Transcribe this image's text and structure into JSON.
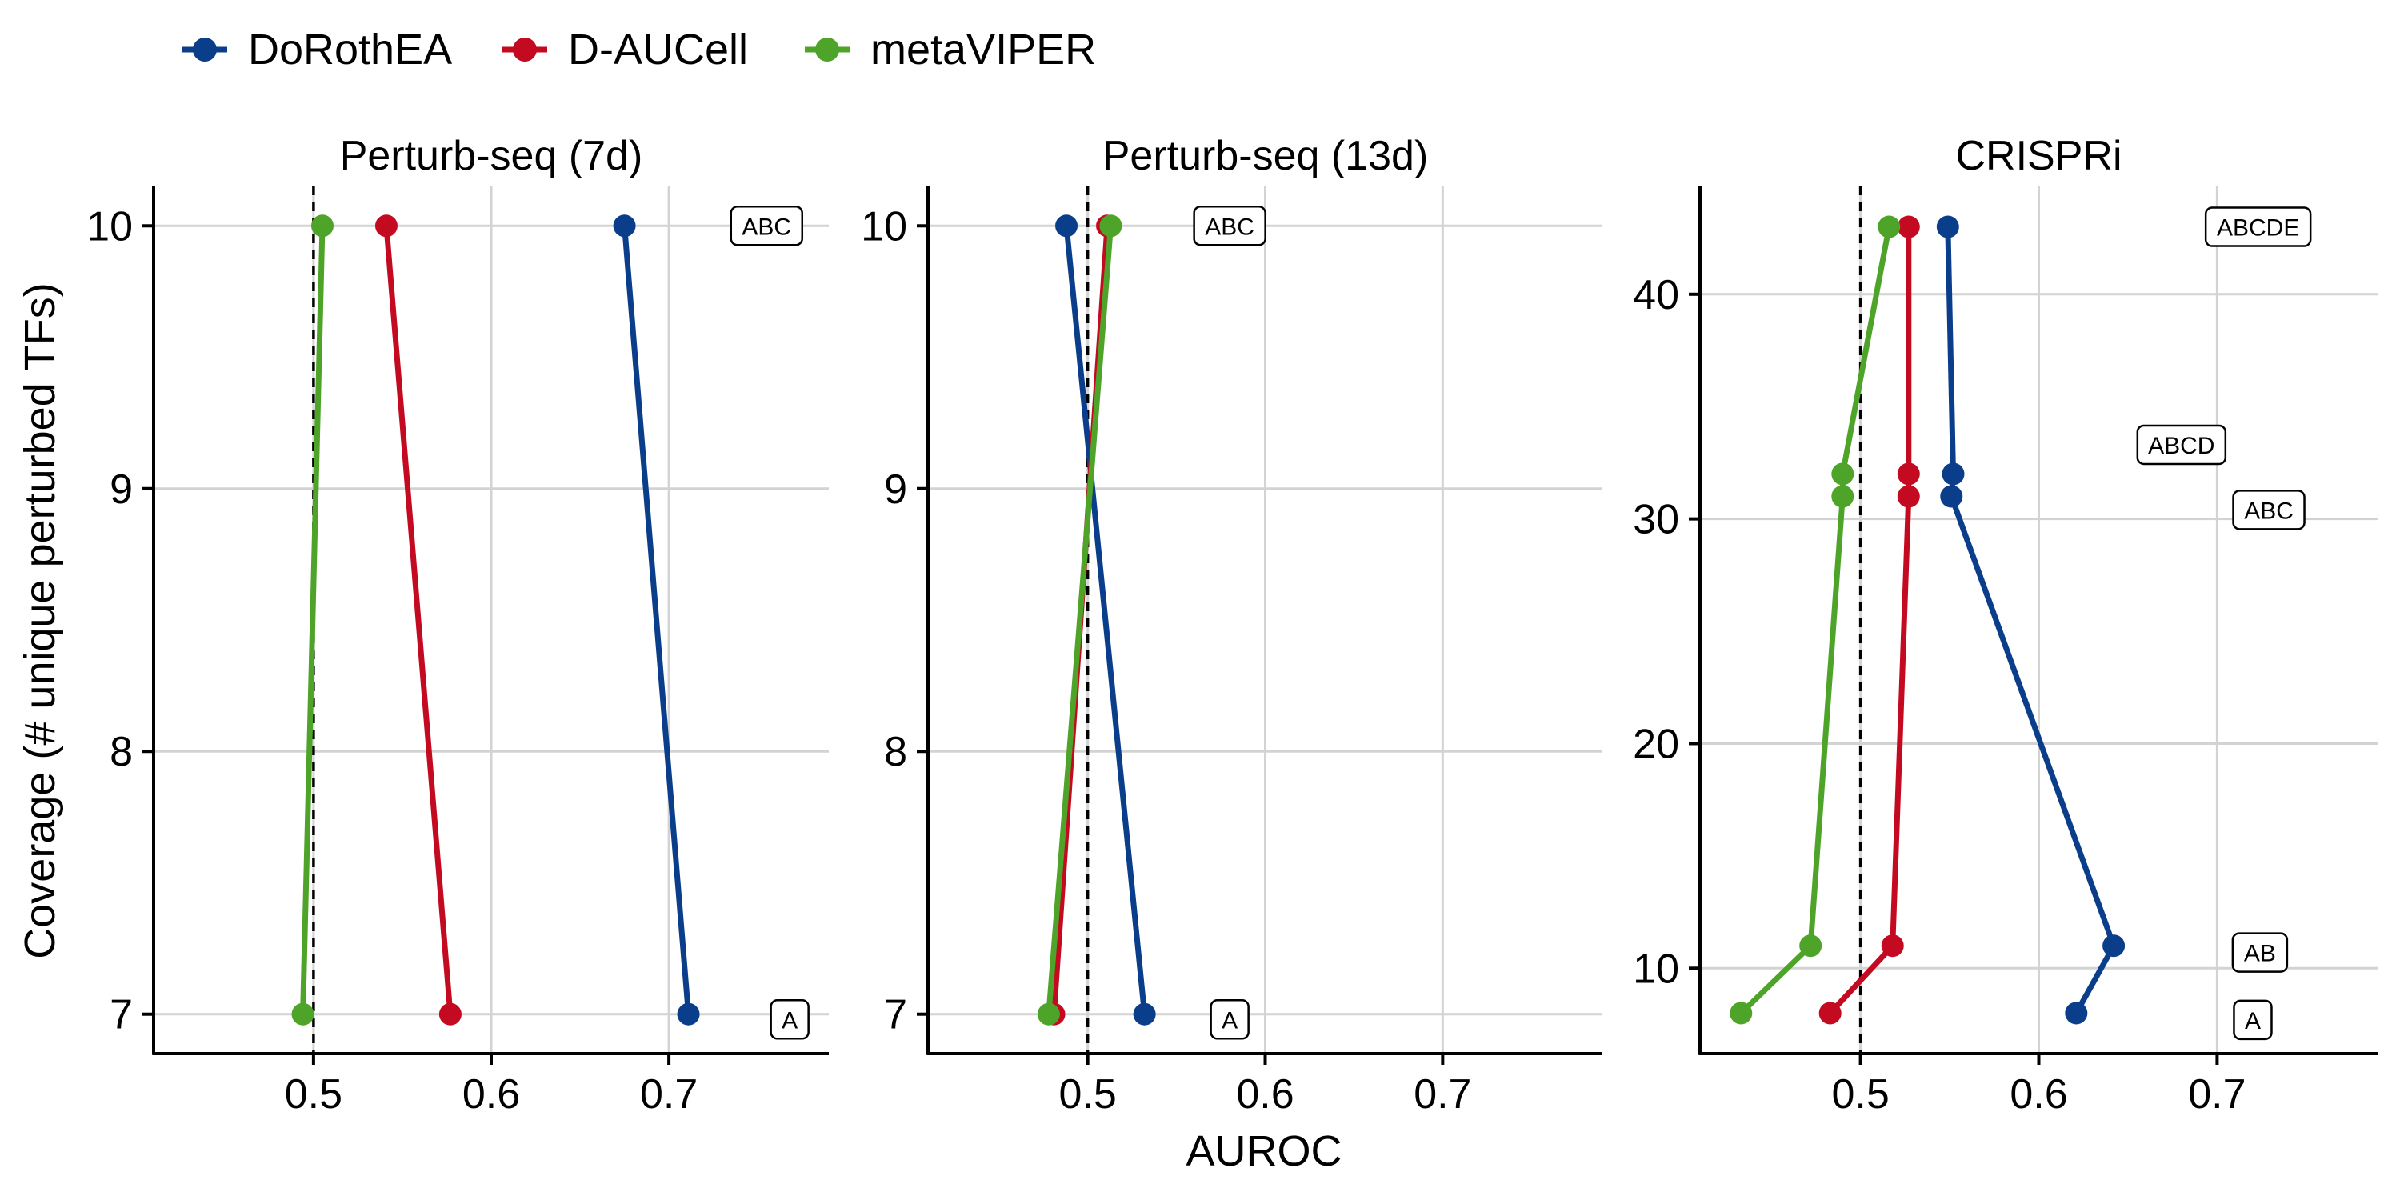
{
  "legend": [
    "DoRothEA",
    "D-AUCell",
    "metaVIPER"
  ],
  "colors": {
    "DoRothEA": "#0b3e8a",
    "D-AUCell": "#c40a20",
    "metaVIPER": "#4ea428",
    "grid": "#d3d3d3",
    "axis": "#000000"
  },
  "axis": {
    "x_title": "AUROC",
    "y_title": "Coverage (# unique perturbed TFs)"
  },
  "chart_data": [
    {
      "type": "line",
      "title": "Perturb-seq (7d)",
      "xlim": [
        0.41,
        0.79
      ],
      "ylim": [
        6.85,
        10.15
      ],
      "xticks": [
        0.5,
        0.6,
        0.7
      ],
      "yticks": [
        7,
        8,
        9,
        10
      ],
      "reference_line_x": 0.5,
      "series": [
        {
          "name": "DoRothEA",
          "points": [
            [
              0.711,
              7
            ],
            [
              0.675,
              10
            ]
          ]
        },
        {
          "name": "D-AUCell",
          "points": [
            [
              0.577,
              7
            ],
            [
              0.541,
              10
            ]
          ]
        },
        {
          "name": "metaVIPER",
          "points": [
            [
              0.494,
              7
            ],
            [
              0.505,
              10
            ]
          ]
        }
      ],
      "annotations": [
        {
          "text": "ABC",
          "x": 0.755,
          "y": 10
        },
        {
          "text": "A",
          "x": 0.768,
          "y": 6.98
        }
      ]
    },
    {
      "type": "line",
      "title": "Perturb-seq (13d)",
      "xlim": [
        0.41,
        0.79
      ],
      "ylim": [
        6.85,
        10.15
      ],
      "xticks": [
        0.5,
        0.6,
        0.7
      ],
      "yticks": [
        7,
        8,
        9,
        10
      ],
      "reference_line_x": 0.5,
      "series": [
        {
          "name": "DoRothEA",
          "points": [
            [
              0.532,
              7
            ],
            [
              0.488,
              10
            ]
          ]
        },
        {
          "name": "D-AUCell",
          "points": [
            [
              0.481,
              7
            ],
            [
              0.511,
              10
            ]
          ]
        },
        {
          "name": "metaVIPER",
          "points": [
            [
              0.478,
              7
            ],
            [
              0.513,
              10
            ]
          ]
        }
      ],
      "annotations": [
        {
          "text": "ABC",
          "x": 0.58,
          "y": 10
        },
        {
          "text": "A",
          "x": 0.58,
          "y": 6.98
        }
      ]
    },
    {
      "type": "line",
      "title": "CRISPRi",
      "xlim": [
        0.41,
        0.79
      ],
      "ylim": [
        6.2,
        44.8
      ],
      "xticks": [
        0.5,
        0.6,
        0.7
      ],
      "yticks": [
        10,
        20,
        30,
        40
      ],
      "reference_line_x": 0.5,
      "series": [
        {
          "name": "DoRothEA",
          "points": [
            [
              0.621,
              8
            ],
            [
              0.642,
              11
            ],
            [
              0.551,
              31
            ],
            [
              0.552,
              32
            ],
            [
              0.549,
              43
            ]
          ]
        },
        {
          "name": "D-AUCell",
          "points": [
            [
              0.483,
              8
            ],
            [
              0.518,
              11
            ],
            [
              0.527,
              31
            ],
            [
              0.527,
              32
            ],
            [
              0.527,
              43
            ]
          ]
        },
        {
          "name": "metaVIPER",
          "points": [
            [
              0.433,
              8
            ],
            [
              0.472,
              11
            ],
            [
              0.49,
              31
            ],
            [
              0.49,
              32
            ],
            [
              0.516,
              43
            ]
          ]
        }
      ],
      "annotations": [
        {
          "text": "ABCDE",
          "x": 0.723,
          "y": 43
        },
        {
          "text": "ABCD",
          "x": 0.68,
          "y": 33.3
        },
        {
          "text": "ABC",
          "x": 0.729,
          "y": 30.4
        },
        {
          "text": "AB",
          "x": 0.724,
          "y": 10.7
        },
        {
          "text": "A",
          "x": 0.72,
          "y": 7.7
        }
      ]
    }
  ]
}
